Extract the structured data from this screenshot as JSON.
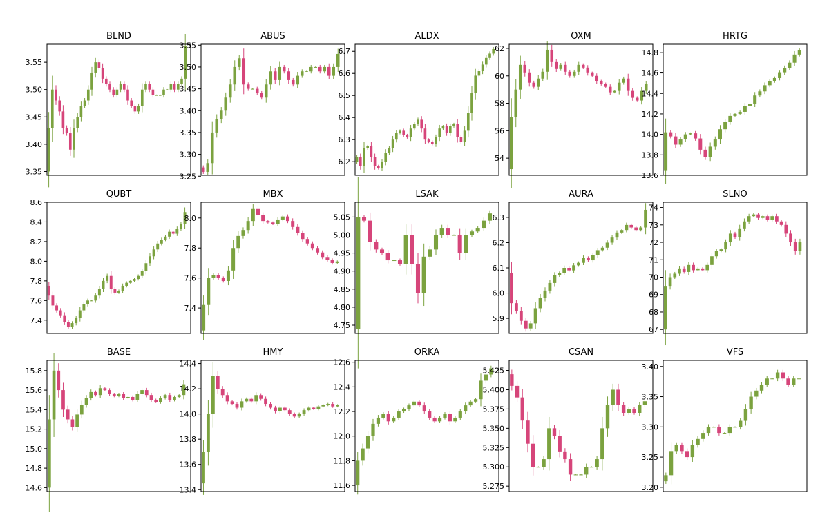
{
  "colors": {
    "up": "#7ba23f",
    "down": "#d6457a",
    "frame": "#000000"
  },
  "chart_data": [
    {
      "type": "candlestick",
      "title": "BLND",
      "ylim": [
        3.343,
        3.583
      ],
      "yticks": [
        "3.35",
        "3.40",
        "3.45",
        "3.50",
        "3.55"
      ],
      "series": [
        3.35,
        3.43,
        3.5,
        3.48,
        3.46,
        3.43,
        3.42,
        3.39,
        3.43,
        3.45,
        3.47,
        3.48,
        3.5,
        3.53,
        3.55,
        3.54,
        3.52,
        3.51,
        3.5,
        3.49,
        3.5,
        3.51,
        3.5,
        3.48,
        3.47,
        3.46,
        3.47,
        3.5,
        3.51,
        3.5,
        3.49,
        3.49,
        3.49,
        3.5,
        3.5,
        3.51,
        3.5,
        3.51,
        3.52,
        3.58
      ]
    },
    {
      "type": "candlestick",
      "title": "ABUS",
      "ylim": [
        3.252,
        3.552
      ],
      "yticks": [
        "3.25",
        "3.30",
        "3.35",
        "3.40",
        "3.45",
        "3.50",
        "3.55"
      ],
      "series": [
        3.27,
        3.26,
        3.28,
        3.35,
        3.38,
        3.4,
        3.43,
        3.46,
        3.5,
        3.52,
        3.46,
        3.45,
        3.45,
        3.44,
        3.43,
        3.46,
        3.49,
        3.47,
        3.5,
        3.49,
        3.47,
        3.46,
        3.48,
        3.49,
        3.49,
        3.5,
        3.5,
        3.49,
        3.5,
        3.48,
        3.5,
        3.53
      ]
    },
    {
      "type": "candlestick",
      "title": "ALDX",
      "ylim": [
        6.138,
        6.732
      ],
      "yticks": [
        "6.2",
        "6.3",
        "6.4",
        "6.5",
        "6.6",
        "6.7"
      ],
      "series": [
        6.2,
        6.22,
        6.18,
        6.26,
        6.27,
        6.22,
        6.18,
        6.17,
        6.2,
        6.24,
        6.26,
        6.3,
        6.33,
        6.34,
        6.32,
        6.31,
        6.35,
        6.37,
        6.39,
        6.35,
        6.3,
        6.29,
        6.28,
        6.31,
        6.35,
        6.36,
        6.33,
        6.36,
        6.37,
        6.31,
        6.29,
        6.34,
        6.42,
        6.51,
        6.59,
        6.61,
        6.64,
        6.67,
        6.69,
        6.71
      ]
    },
    {
      "type": "candlestick",
      "title": "OXM",
      "ylim": [
        52.75,
        62.3
      ],
      "yticks": [
        "54",
        "56",
        "58",
        "60",
        "62"
      ],
      "series": [
        53.2,
        57,
        59,
        60.8,
        60.2,
        59.5,
        59.2,
        59.8,
        60.3,
        61.9,
        61,
        60.5,
        60.8,
        60.3,
        60,
        60.3,
        60.8,
        60.6,
        60.2,
        60,
        59.6,
        59.4,
        59.2,
        58.8,
        58.9,
        59.5,
        59.8,
        58.9,
        58.4,
        58.2,
        58.9,
        59.4
      ]
    },
    {
      "type": "candlestick",
      "title": "HRTG",
      "ylim": [
        13.6,
        14.88
      ],
      "yticks": [
        "13.6",
        "13.8",
        "14.0",
        "14.2",
        "14.4",
        "14.6",
        "14.8"
      ],
      "series": [
        13.65,
        14.02,
        13.98,
        13.9,
        13.95,
        14,
        14.01,
        13.96,
        13.85,
        13.78,
        13.88,
        13.95,
        14.05,
        14.12,
        14.18,
        14.2,
        14.22,
        14.28,
        14.3,
        14.38,
        14.42,
        14.48,
        14.52,
        14.55,
        14.6,
        14.65,
        14.7,
        14.78,
        14.82
      ]
    },
    {
      "type": "candlestick",
      "title": "QUBT",
      "ylim": [
        7.265,
        8.6
      ],
      "yticks": [
        "7.4",
        "7.6",
        "7.8",
        "8.0",
        "8.2",
        "8.4",
        "8.6"
      ],
      "series": [
        7.75,
        7.65,
        7.55,
        7.5,
        7.45,
        7.38,
        7.33,
        7.37,
        7.42,
        7.5,
        7.56,
        7.6,
        7.6,
        7.65,
        7.72,
        7.8,
        7.85,
        7.72,
        7.68,
        7.7,
        7.75,
        7.78,
        7.8,
        7.82,
        7.85,
        7.9,
        7.98,
        8.05,
        8.12,
        8.18,
        8.22,
        8.25,
        8.3,
        8.28,
        8.33,
        8.38,
        8.5
      ]
    },
    {
      "type": "candlestick",
      "title": "MBX",
      "ylim": [
        7.23,
        8.105
      ],
      "yticks": [
        "7.4",
        "7.6",
        "7.8",
        "8.0"
      ],
      "series": [
        7.25,
        7.42,
        7.6,
        7.62,
        7.6,
        7.58,
        7.65,
        7.8,
        7.88,
        7.92,
        7.98,
        8.06,
        8.02,
        7.98,
        7.97,
        7.96,
        7.99,
        8.01,
        7.98,
        7.94,
        7.9,
        7.86,
        7.83,
        7.8,
        7.77,
        7.74,
        7.72,
        7.7,
        7.71
      ]
    },
    {
      "type": "candlestick",
      "title": "LSAK",
      "ylim": [
        4.727,
        5.091
      ],
      "yticks": [
        "4.75",
        "4.80",
        "4.85",
        "4.90",
        "4.95",
        "5.00",
        "5.05"
      ],
      "series": [
        4.74,
        5.05,
        5.04,
        4.98,
        4.96,
        4.95,
        4.93,
        4.93,
        4.92,
        5,
        4.92,
        4.84,
        4.94,
        4.96,
        5,
        5.02,
        5,
        5,
        4.95,
        5,
        5.01,
        5.02,
        5.04,
        5.06
      ]
    },
    {
      "type": "candlestick",
      "title": "AURA",
      "ylim": [
        5.84,
        6.36
      ],
      "yticks": [
        "5.9",
        "6.0",
        "6.1",
        "6.2",
        "6.3"
      ],
      "series": [
        6.08,
        5.96,
        5.93,
        5.89,
        5.86,
        5.88,
        5.94,
        5.98,
        6.01,
        6.04,
        6.07,
        6.08,
        6.1,
        6.09,
        6.11,
        6.12,
        6.14,
        6.13,
        6.15,
        6.17,
        6.18,
        6.2,
        6.22,
        6.24,
        6.25,
        6.27,
        6.26,
        6.25,
        6.26,
        6.33
      ]
    },
    {
      "type": "candlestick",
      "title": "SLNO",
      "ylim": [
        66.77,
        74.3
      ],
      "yticks": [
        "67",
        "68",
        "69",
        "70",
        "71",
        "72",
        "73",
        "74"
      ],
      "series": [
        67,
        69.5,
        70,
        70.2,
        70.5,
        70.3,
        70.7,
        70.4,
        70.5,
        70.4,
        70.7,
        71.2,
        71.5,
        71.6,
        72,
        72.5,
        72.3,
        72.8,
        73.2,
        73.5,
        73.6,
        73.4,
        73.5,
        73.3,
        73.5,
        73.2,
        73,
        72.5,
        72,
        71.5,
        72
      ]
    },
    {
      "type": "candlestick",
      "title": "BASE",
      "ylim": [
        14.56,
        15.905
      ],
      "yticks": [
        "14.6",
        "14.8",
        "15.0",
        "15.2",
        "15.4",
        "15.6",
        "15.8"
      ],
      "series": [
        14.6,
        15.3,
        15.8,
        15.6,
        15.4,
        15.3,
        15.22,
        15.35,
        15.45,
        15.52,
        15.58,
        15.55,
        15.62,
        15.6,
        15.56,
        15.54,
        15.56,
        15.52,
        15.53,
        15.5,
        15.56,
        15.6,
        15.55,
        15.5,
        15.48,
        15.52,
        15.55,
        15.5,
        15.53,
        15.55,
        15.66
      ]
    },
    {
      "type": "candlestick",
      "title": "HMY",
      "ylim": [
        13.385,
        14.425
      ],
      "yticks": [
        "13.4",
        "13.6",
        "13.8",
        "14.0",
        "14.2",
        "14.4"
      ],
      "series": [
        13.45,
        13.7,
        14,
        14.3,
        14.2,
        14.15,
        14.1,
        14.08,
        14.05,
        14.1,
        14.12,
        14.1,
        14.15,
        14.12,
        14.08,
        14.05,
        14.02,
        14.05,
        14.03,
        14,
        13.98,
        14,
        14.03,
        14.05,
        14.04,
        14.06,
        14.07,
        14.08,
        14.06,
        14.07
      ]
    },
    {
      "type": "candlestick",
      "title": "ORKA",
      "ylim": [
        11.55,
        12.615
      ],
      "yticks": [
        "11.6",
        "11.8",
        "12.0",
        "12.2",
        "12.4",
        "12.6"
      ],
      "series": [
        11.6,
        11.8,
        11.9,
        12,
        12.1,
        12.15,
        12.18,
        12.12,
        12.15,
        12.2,
        12.22,
        12.25,
        12.28,
        12.25,
        12.2,
        12.15,
        12.12,
        12.15,
        12.18,
        12.12,
        12.15,
        12.2,
        12.25,
        12.28,
        12.3,
        12.45,
        12.5,
        12.55
      ]
    },
    {
      "type": "candlestick",
      "title": "CSAN",
      "ylim": [
        5.268,
        5.438
      ],
      "yticks": [
        "5.275",
        "5.300",
        "5.325",
        "5.350",
        "5.375",
        "5.400",
        "5.425"
      ],
      "series": [
        5.42,
        5.405,
        5.39,
        5.36,
        5.33,
        5.3,
        5.3,
        5.31,
        5.35,
        5.34,
        5.32,
        5.31,
        5.29,
        5.29,
        5.29,
        5.3,
        5.3,
        5.31,
        5.35,
        5.38,
        5.4,
        5.38,
        5.37,
        5.375,
        5.37,
        5.38,
        5.385
      ]
    },
    {
      "type": "candlestick",
      "title": "VFS",
      "ylim": [
        3.193,
        3.41
      ],
      "yticks": [
        "3.20",
        "3.25",
        "3.30",
        "3.35",
        "3.40"
      ],
      "series": [
        3.21,
        3.22,
        3.26,
        3.27,
        3.26,
        3.25,
        3.27,
        3.28,
        3.29,
        3.3,
        3.3,
        3.29,
        3.29,
        3.3,
        3.3,
        3.31,
        3.33,
        3.35,
        3.36,
        3.37,
        3.38,
        3.38,
        3.39,
        3.38,
        3.37,
        3.38,
        3.38
      ]
    }
  ]
}
